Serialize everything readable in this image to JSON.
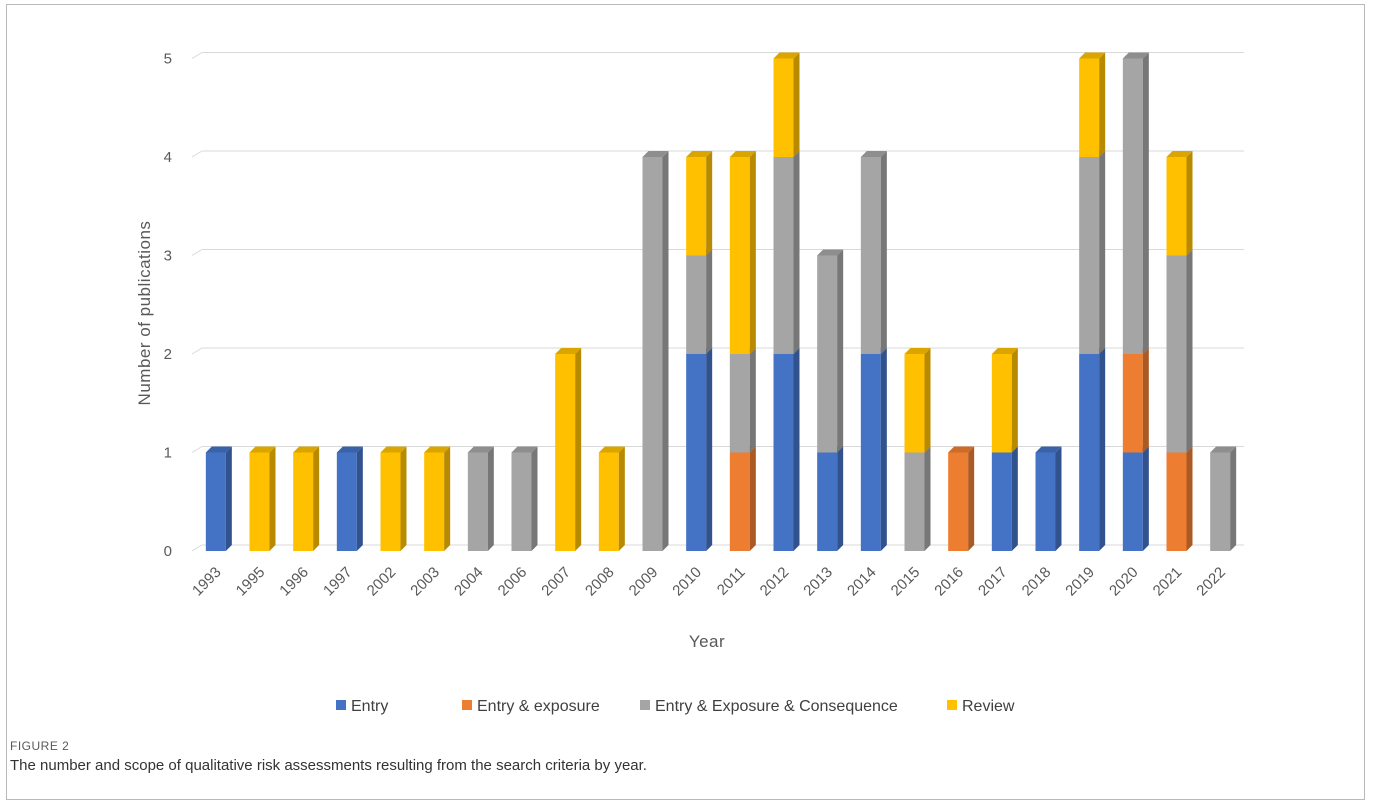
{
  "figure": {
    "label": "FIGURE 2",
    "caption": "The number and scope of qualitative risk assessments resulting from the search criteria by year."
  },
  "chart_data": {
    "type": "bar",
    "stacked": true,
    "style": "3d-column",
    "title": "",
    "xlabel": "Year",
    "ylabel": "Number of publications",
    "ylim": [
      0,
      5
    ],
    "yticks": [
      0,
      1,
      2,
      3,
      4,
      5
    ],
    "grid": true,
    "legend_position": "bottom",
    "categories": [
      "1993",
      "1995",
      "1996",
      "1997",
      "2002",
      "2003",
      "2004",
      "2006",
      "2007",
      "2008",
      "2009",
      "2010",
      "2011",
      "2012",
      "2013",
      "2014",
      "2015",
      "2016",
      "2017",
      "2018",
      "2019",
      "2020",
      "2021",
      "2022"
    ],
    "series": [
      {
        "name": "Entry",
        "color": "#4472c4",
        "values": [
          1,
          0,
          0,
          1,
          0,
          0,
          0,
          0,
          0,
          0,
          0,
          2,
          0,
          2,
          1,
          2,
          0,
          0,
          1,
          1,
          2,
          1,
          0,
          0
        ]
      },
      {
        "name": "Entry & exposure",
        "color": "#ed7d31",
        "values": [
          0,
          0,
          0,
          0,
          0,
          0,
          0,
          0,
          0,
          0,
          0,
          0,
          1,
          0,
          0,
          0,
          0,
          1,
          0,
          0,
          0,
          1,
          1,
          0
        ]
      },
      {
        "name": "Entry & Exposure & Consequence",
        "color": "#a5a5a5",
        "values": [
          0,
          0,
          0,
          0,
          0,
          0,
          1,
          1,
          0,
          0,
          4,
          1,
          1,
          2,
          2,
          2,
          1,
          0,
          0,
          0,
          2,
          3,
          2,
          1
        ]
      },
      {
        "name": "Review",
        "color": "#ffc000",
        "values": [
          0,
          1,
          1,
          0,
          1,
          1,
          0,
          0,
          2,
          1,
          0,
          1,
          2,
          1,
          0,
          0,
          1,
          0,
          1,
          0,
          1,
          0,
          1,
          0
        ]
      }
    ]
  }
}
